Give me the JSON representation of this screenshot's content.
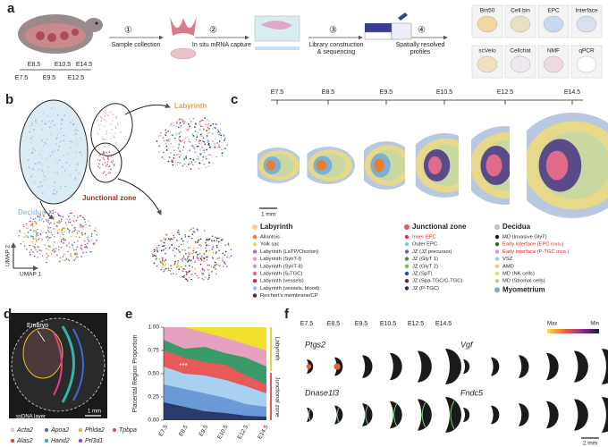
{
  "panel_a": {
    "label": "a",
    "steps": [
      {
        "number": "①",
        "lines": [
          "Sample collection"
        ]
      },
      {
        "number": "②",
        "lines": [
          "In situ mRNA capture"
        ]
      },
      {
        "number": "③",
        "lines": [
          "Library construction",
          "& sequencing"
        ]
      },
      {
        "number": "④",
        "lines": [
          "Spatially resolved",
          "profiles"
        ]
      }
    ],
    "stages_top": [
      "E8.5",
      "E10.5",
      "E14.5"
    ],
    "stages_bottom": [
      "E7.5",
      "E9.5",
      "E12.5"
    ],
    "profiles": [
      "Bin50",
      "Cell bin",
      "EPC",
      "Interface",
      "scVelo",
      "Cellchat",
      "NMF",
      "qPCR"
    ]
  },
  "panel_b": {
    "label": "b",
    "regions": [
      {
        "text": "Labyrinth",
        "color": "#e6a24a"
      },
      {
        "text": "Junctional zone",
        "color": "#8a3a2a"
      },
      {
        "text": "Decidua",
        "color": "#9bc3e0"
      }
    ],
    "axis_y": "UMAP 2",
    "axis_x": "UMAP 1"
  },
  "panel_c": {
    "label": "c",
    "stages": [
      "E7.5",
      "E8.5",
      "E9.5",
      "E10.5",
      "E12.5",
      "E14.5"
    ],
    "scale": "1 mm",
    "legend": [
      {
        "header": "Labyrinth",
        "color": "#f2c9a0",
        "items": [
          {
            "text": "Allantois",
            "color": "#e87e2e"
          },
          {
            "text": "Yolk sac",
            "color": "#f1d36a"
          },
          {
            "text": "Labyrinth (LaTP/Chorion)",
            "color": "#c86bb0"
          },
          {
            "text": "Labyrinth (SynT-I)",
            "color": "#d9a0c8"
          },
          {
            "text": "Labyrinth (SynT-II)",
            "color": "#b2a0d6"
          },
          {
            "text": "Labyrinth (S-TGC)",
            "color": "#e46a8a"
          },
          {
            "text": "Labyrinth (vessels)",
            "color": "#c2304a"
          },
          {
            "text": "Labyrinth (vessels, blood)",
            "color": "#9bbbe6"
          },
          {
            "text": "Reichert's membrane/CP",
            "color": "#333333"
          }
        ]
      },
      {
        "header": "Junctional zone",
        "color": "#e85a5a",
        "items": [
          {
            "text": "Inner EPC",
            "color": "#e23a2a",
            "highlight": true
          },
          {
            "text": "Outer EPC",
            "color": "#8ac4e8"
          },
          {
            "text": "JZ (JZ precursor)",
            "color": "#7a5ab0"
          },
          {
            "text": "JZ (GlyT 1)",
            "color": "#5a8a3a"
          },
          {
            "text": "JZ (GlyT 2)",
            "color": "#8ab04a"
          },
          {
            "text": "JZ (SpT)",
            "color": "#2a4a8a"
          },
          {
            "text": "JZ (Spa-TGC/C-TGC)",
            "color": "#6a2a2a"
          },
          {
            "text": "JZ (P-TGC)",
            "color": "#3a2a5a"
          }
        ]
      },
      {
        "header": "Decidua",
        "color": "#b8bcc8",
        "items": [
          {
            "text": "MD (Invasive GlyT)",
            "color": "#1a1a1a"
          },
          {
            "text": "Early interface (EPC inva.)",
            "color": "#2a6a3a",
            "highlight": true
          },
          {
            "text": "Early interface (P-TGC inva.)",
            "color": "#c4a0d8",
            "highlight": true
          },
          {
            "text": "VSZ",
            "color": "#a8c8e8"
          },
          {
            "text": "AMD",
            "color": "#e8d06a"
          },
          {
            "text": "MD (NK cells)",
            "color": "#d8e06a"
          },
          {
            "text": "MD (Stromal cells)",
            "color": "#c8c87a"
          }
        ],
        "footer": {
          "text": "Myometrium",
          "color": "#8aa8d8"
        }
      }
    ]
  },
  "panel_d": {
    "label": "d",
    "annotation": "Embryo",
    "layer": "ssDNA layer",
    "scale": "1 mm",
    "genes": [
      {
        "text": "Acta2",
        "color": "#dddddd"
      },
      {
        "text": "Apoa2",
        "color": "#3a6ad8"
      },
      {
        "text": "Phlda2",
        "color": "#e8c02a"
      },
      {
        "text": "Tpbpa",
        "color": "#e83a8a"
      },
      {
        "text": "Alas2",
        "color": "#e83a2a"
      },
      {
        "text": "Hand2",
        "color": "#2ab8a8"
      },
      {
        "text": "Prl3d1",
        "color": "#8a3ad8"
      }
    ]
  },
  "panel_e": {
    "label": "e",
    "y_label": "Placental Region Proportion",
    "y_ticks": [
      "0.00",
      "0.25",
      "0.50",
      "0.75",
      "1.00"
    ],
    "stages": [
      "E7.5",
      "E8.5",
      "E9.5",
      "E10.5",
      "E12.5",
      "E14.5"
    ],
    "significance": "***",
    "side_labels": [
      "Labyrinth",
      "Junctional zone"
    ]
  },
  "panel_f": {
    "label": "f",
    "stages": [
      "E7.5",
      "E8.5",
      "E9.5",
      "E10.5",
      "E12.5",
      "E14.5"
    ],
    "genes": [
      "Ptgs2",
      "Vgf",
      "Dnase1l3",
      "Fndc5"
    ],
    "colorbar": [
      "Max",
      "Min"
    ],
    "scale": "2 mm"
  }
}
